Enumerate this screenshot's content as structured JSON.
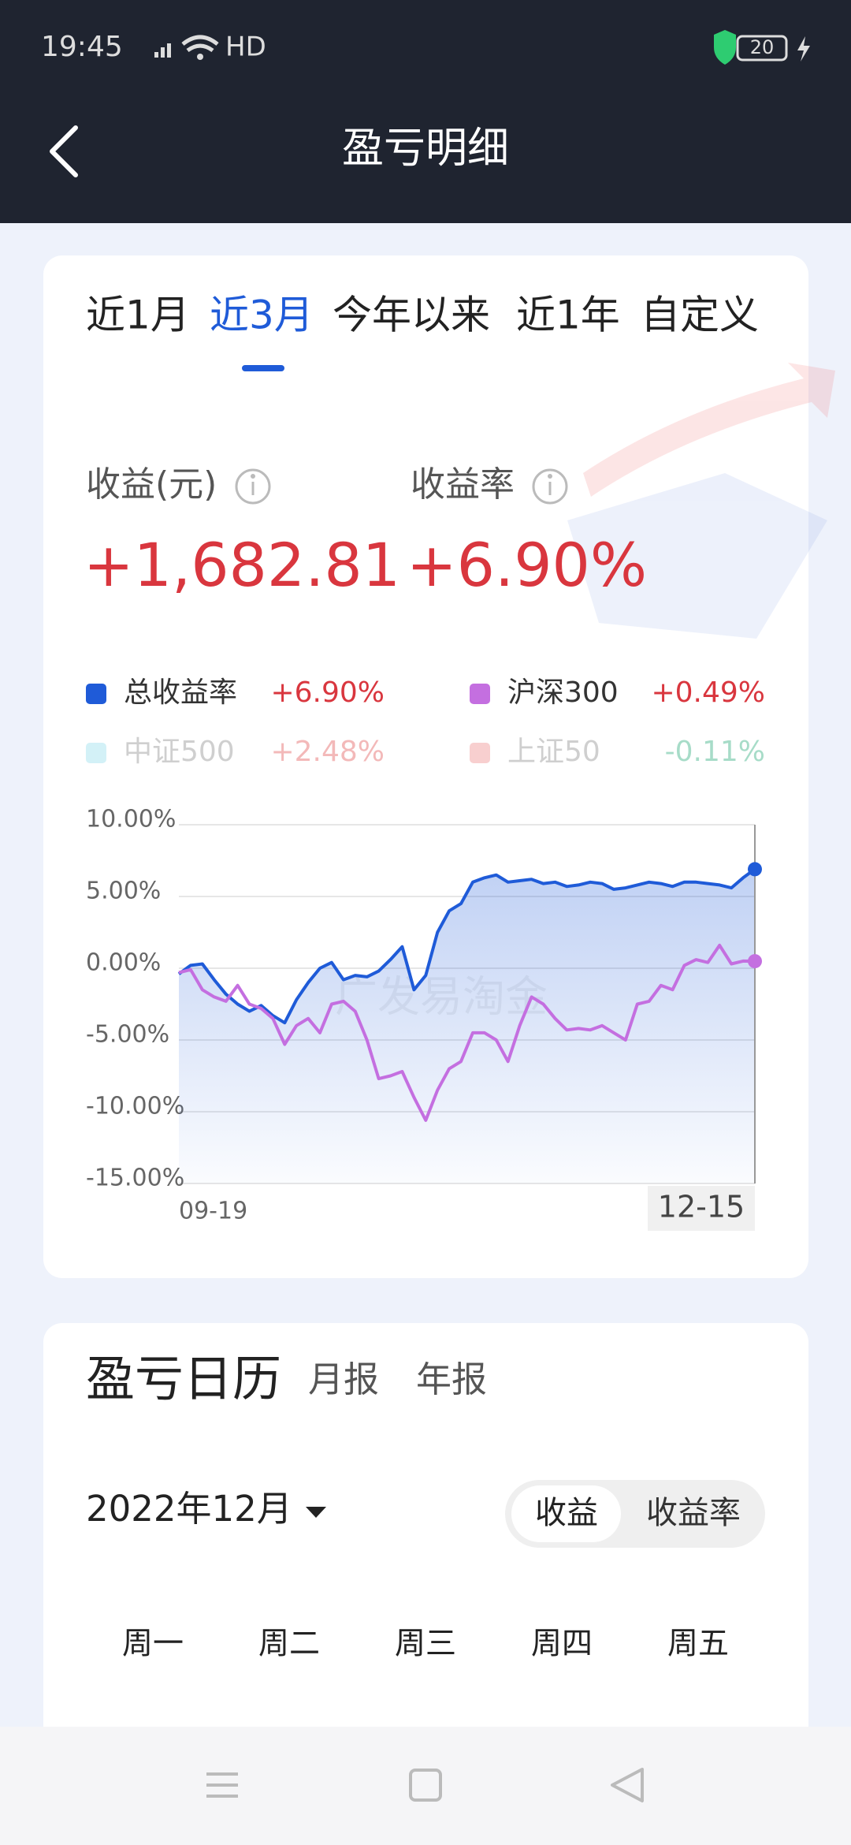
{
  "status_bar": {
    "time": "19:45",
    "network": "HD",
    "battery": "20"
  },
  "header": {
    "title": "盈亏明细"
  },
  "tabs": {
    "items": [
      "近1月",
      "近3月",
      "今年以来",
      "近1年",
      "自定义"
    ],
    "active": 1
  },
  "summary": {
    "profit_label": "收益(元)",
    "profit_value": "+1,682.81",
    "rate_label": "收益率",
    "rate_value": "+6.90%"
  },
  "chart_data": {
    "type": "line",
    "watermark": "广发易淘金",
    "categories": [
      "09-19",
      null,
      null,
      null,
      null,
      null,
      null,
      null,
      null,
      null,
      null,
      null,
      null,
      null,
      null,
      null,
      null,
      null,
      null,
      null,
      null,
      null,
      null,
      null,
      null,
      null,
      null,
      null,
      null,
      null,
      null,
      null,
      null,
      null,
      null,
      null,
      null,
      null,
      null,
      null,
      null,
      null,
      null,
      null,
      null,
      null,
      null,
      null,
      null,
      "12-15"
    ],
    "ylim": [
      -15,
      10
    ],
    "yticks": [
      {
        "value": 10,
        "label": "10.00%"
      },
      {
        "value": 5,
        "label": "5.00%"
      },
      {
        "value": 0,
        "label": "0.00%"
      },
      {
        "value": -5,
        "label": "-5.00%"
      },
      {
        "value": -10,
        "label": "-10.00%"
      },
      {
        "value": -15,
        "label": "-15.00%"
      }
    ],
    "grid": true,
    "series": [
      {
        "name": "总收益率",
        "color": "#1f5bd8",
        "value_label": "+6.90%",
        "label_color": "#d9363e",
        "visible": true,
        "values": [
          -0.4,
          0.2,
          0.3,
          -0.8,
          -1.8,
          -2.5,
          -3,
          -2.6,
          -3.3,
          -3.8,
          -2.2,
          -1,
          0,
          0.4,
          -0.8,
          -0.5,
          -0.6,
          -0.2,
          0.6,
          1.5,
          -1.5,
          -0.5,
          2.5,
          4,
          4.5,
          6,
          6.3,
          6.5,
          6,
          6.1,
          6.2,
          5.9,
          6,
          5.7,
          5.8,
          6,
          5.9,
          5.5,
          5.6,
          5.8,
          6,
          5.9,
          5.7,
          6,
          6,
          5.9,
          5.8,
          5.6,
          6.3,
          6.9
        ]
      },
      {
        "name": "沪深300",
        "color": "#c46fe0",
        "value_label": "+0.49%",
        "label_color": "#d9363e",
        "visible": true,
        "values": [
          -0.3,
          -0.1,
          -1.5,
          -2,
          -2.3,
          -1.2,
          -2.5,
          -2.8,
          -3.5,
          -5.3,
          -4,
          -3.5,
          -4.5,
          -2.5,
          -2.3,
          -3,
          -5,
          -7.7,
          -7.5,
          -7.2,
          -9,
          -10.6,
          -8.5,
          -7,
          -6.5,
          -4.5,
          -4.5,
          -5,
          -6.5,
          -4,
          -2,
          -2.5,
          -3.5,
          -4.3,
          -4.2,
          -4.3,
          -4,
          -4.5,
          -5,
          -2.5,
          -2.3,
          -1.2,
          -1.5,
          0.2,
          0.6,
          0.4,
          1.6,
          0.3,
          0.5,
          0.49
        ]
      },
      {
        "name": "中证500",
        "color": "#d3f1f7",
        "value_label": "+2.48%",
        "label_color": "#f3b9b9",
        "visible": false
      },
      {
        "name": "上证50",
        "color": "#f8cfcf",
        "value_label": "-0.11%",
        "label_color": "#a7dcc8",
        "visible": false
      }
    ]
  },
  "calendar": {
    "title": "盈亏日历",
    "tabs": [
      "月报",
      "年报"
    ],
    "month": "2022年12月",
    "toggle": [
      "收益",
      "收益率"
    ],
    "weekdays": [
      "周一",
      "周二",
      "周三",
      "周四",
      "周五"
    ]
  }
}
